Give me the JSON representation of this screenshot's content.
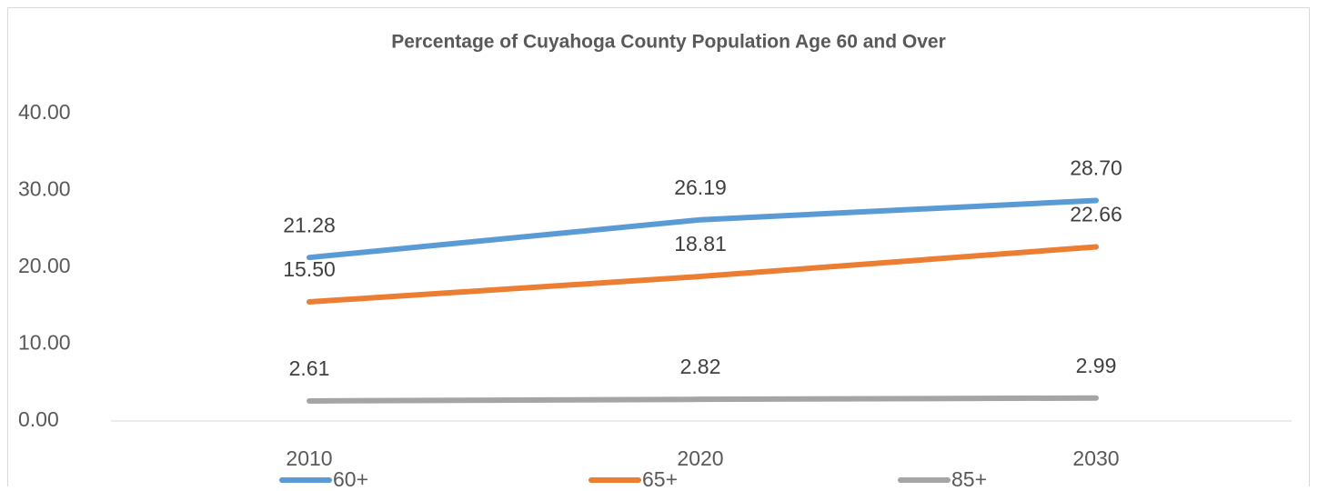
{
  "chart_data": {
    "type": "line",
    "title": "Percentage of Cuyahoga County Population Age 60 and Over",
    "categories": [
      "2010",
      "2020",
      "2030"
    ],
    "series": [
      {
        "name": "60+",
        "color": "#5b9bd5",
        "values": [
          21.28,
          26.19,
          28.7
        ],
        "value_labels": [
          "21.28",
          "26.19",
          "28.70"
        ]
      },
      {
        "name": "65+",
        "color": "#ed7d31",
        "values": [
          15.5,
          18.81,
          22.66
        ],
        "value_labels": [
          "15.50",
          "18.81",
          "22.66"
        ]
      },
      {
        "name": "85+",
        "color": "#a5a5a5",
        "values": [
          2.61,
          2.82,
          2.99
        ],
        "value_labels": [
          "2.61",
          "2.82",
          "2.99"
        ]
      }
    ],
    "ylim": [
      0,
      40
    ],
    "yticks": [
      {
        "value": 0,
        "label": "0.00"
      },
      {
        "value": 10,
        "label": "10.00"
      },
      {
        "value": 20,
        "label": "20.00"
      },
      {
        "value": 30,
        "label": "30.00"
      },
      {
        "value": 40,
        "label": "40.00"
      }
    ],
    "grid": false,
    "legend": "bottom"
  }
}
